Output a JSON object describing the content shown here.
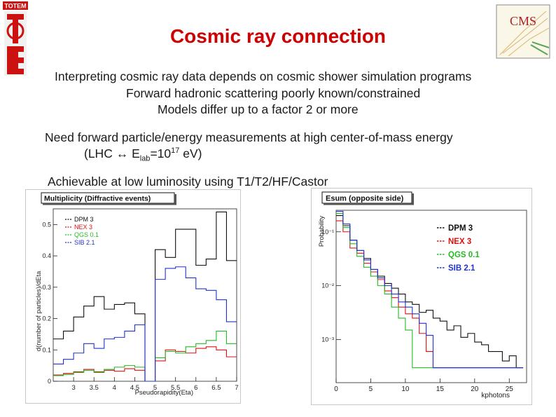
{
  "logos": {
    "totem_text": "TOTEM",
    "cms_text": "CMS"
  },
  "title": "Cosmic ray connection",
  "bullets": [
    "Interpreting cosmic ray data depends on cosmic shower simulation programs",
    "Forward hadronic scattering poorly known/constrained",
    "Models differ up to a factor 2 or more"
  ],
  "need": {
    "line1": "Need forward particle/energy measurements at high center-of-mass energy",
    "line2_pre": "(LHC ",
    "arrow": "↔",
    "e_sym": " E",
    "e_sub": "lab",
    "e_eq": "=10",
    "e_exp": "17",
    "e_unit": " eV)"
  },
  "achievable": "Achievable at low luminosity using T1/T2/HF/Castor",
  "chart_data": [
    {
      "type": "line",
      "title": "Multiplicity (Diffractive events)",
      "xlabel": "Pseudorapidity(Eta)",
      "ylabel": "d(number of particles)/dEta",
      "xlim": [
        2.5,
        7.0
      ],
      "ylim": [
        0,
        0.55
      ],
      "xtick_labels": [
        "3",
        "3.5",
        "4",
        "4.5",
        "5",
        "5.5",
        "6",
        "6.5",
        "7"
      ],
      "ytick_labels": [
        "0",
        "0.1",
        "0.2",
        "0.3",
        "0.4",
        "0.5"
      ],
      "edges": [
        2.5,
        2.75,
        3.0,
        3.25,
        3.5,
        3.75,
        4.0,
        4.25,
        4.5,
        4.75,
        5.0,
        5.25,
        5.5,
        5.75,
        6.0,
        6.25,
        6.5,
        6.75,
        7.0
      ],
      "series": [
        {
          "name": "DPM 3",
          "color": "#111111",
          "values": [
            0.135,
            0.16,
            0.205,
            0.24,
            0.27,
            0.23,
            0.245,
            0.25,
            0.215,
            0.0,
            0.42,
            0.395,
            0.485,
            0.485,
            0.37,
            0.39,
            0.54,
            0.385
          ]
        },
        {
          "name": "NEX 3",
          "color": "#e01010",
          "values": [
            0.02,
            0.025,
            0.03,
            0.038,
            0.03,
            0.035,
            0.032,
            0.04,
            0.035,
            0.0,
            0.065,
            0.1,
            0.095,
            0.09,
            0.105,
            0.11,
            0.1,
            0.078
          ]
        },
        {
          "name": "QGS 0.1",
          "color": "#22bb22",
          "values": [
            0.018,
            0.022,
            0.028,
            0.035,
            0.028,
            0.038,
            0.045,
            0.05,
            0.045,
            0.0,
            0.075,
            0.095,
            0.09,
            0.11,
            0.12,
            0.13,
            0.16,
            0.12
          ]
        },
        {
          "name": "SIB 2.1",
          "color": "#2233cc",
          "values": [
            0.055,
            0.07,
            0.09,
            0.12,
            0.105,
            0.135,
            0.14,
            0.16,
            0.18,
            0.0,
            0.325,
            0.36,
            0.365,
            0.33,
            0.295,
            0.29,
            0.26,
            0.19
          ]
        }
      ]
    },
    {
      "type": "line",
      "title": "Esum (opposite side)",
      "xlabel": "kphotons",
      "ylabel": "Probability",
      "xlim": [
        0,
        27.5
      ],
      "yscale": "log",
      "ylim_exp": [
        -3.8,
        -0.6
      ],
      "xtick_labels": [
        "0",
        "5",
        "10",
        "15",
        "20",
        "25"
      ],
      "ytick_labels": [
        "10⁻¹",
        "10⁻²",
        "10⁻³"
      ],
      "bin_width": 1,
      "series": [
        {
          "name": "DPM 3",
          "color": "#111111",
          "values": [
            0.2,
            0.13,
            0.07,
            0.045,
            0.032,
            0.02,
            0.015,
            0.011,
            0.009,
            0.007,
            0.005,
            0.0045,
            0.0032,
            0.0035,
            0.0025,
            0.0022,
            0.0015,
            0.0018,
            0.0011,
            0.0013,
            0.0009,
            0.0008,
            0.0006,
            0.0006,
            0.0004,
            0.0005,
            0.0003
          ]
        },
        {
          "name": "NEX 3",
          "color": "#e01010",
          "values": [
            0.16,
            0.1,
            0.05,
            0.04,
            0.026,
            0.018,
            0.013,
            0.008,
            0.006,
            0.004,
            0.003,
            0.0025,
            0.0013,
            0.0006,
            0.0003,
            0.0003,
            0.0003,
            0.0003,
            0.0003,
            0.0003,
            0.0003,
            0.0003,
            0.0003,
            0.0003,
            0.0003,
            0.0003,
            0.0003
          ]
        },
        {
          "name": "QGS 0.1",
          "color": "#22bb22",
          "values": [
            0.22,
            0.12,
            0.06,
            0.035,
            0.022,
            0.015,
            0.01,
            0.007,
            0.004,
            0.0025,
            0.0015,
            0.0003,
            0.0003,
            0.0003,
            0.0003,
            0.0003,
            0.0003,
            0.0003,
            0.0003,
            0.0003,
            0.0003,
            0.0003,
            0.0003,
            0.0003,
            0.0003,
            0.0003,
            0.0003
          ]
        },
        {
          "name": "SIB 2.1",
          "color": "#2233cc",
          "values": [
            0.24,
            0.14,
            0.07,
            0.045,
            0.03,
            0.02,
            0.014,
            0.01,
            0.007,
            0.005,
            0.004,
            0.003,
            0.002,
            0.0012,
            0.0003,
            0.0003,
            0.0003,
            0.0003,
            0.0003,
            0.0003,
            0.0003,
            0.0003,
            0.0003,
            0.0003,
            0.0003,
            0.0003,
            0.0003
          ]
        }
      ]
    }
  ]
}
